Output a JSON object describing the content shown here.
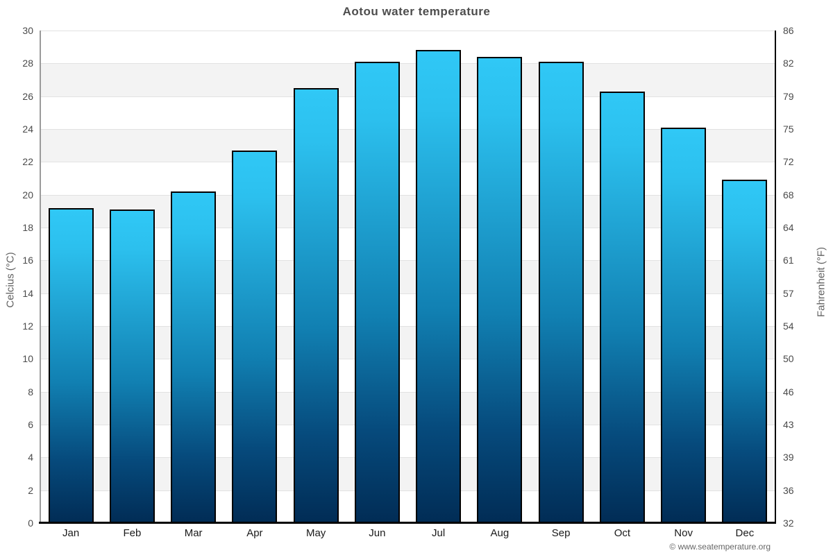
{
  "title": "Aotou water temperature",
  "footer": {
    "copyright": "© www.seatemperature.org"
  },
  "chart_data": {
    "type": "bar",
    "title": "Aotou water temperature",
    "categories": [
      "Jan",
      "Feb",
      "Mar",
      "Apr",
      "May",
      "Jun",
      "Jul",
      "Aug",
      "Sep",
      "Oct",
      "Nov",
      "Dec"
    ],
    "values": [
      19.2,
      19.1,
      20.2,
      22.7,
      26.5,
      28.1,
      28.8,
      28.4,
      28.1,
      26.3,
      24.1,
      20.9
    ],
    "ylabel_left": "Celcius (°C)",
    "ylabel_right": "Fahrenheit (°F)",
    "yticks_celsius": [
      30,
      28,
      26,
      24,
      22,
      20,
      18,
      16,
      14,
      12,
      10,
      8,
      6,
      4,
      2,
      0
    ],
    "yticks_fahrenheit": [
      86,
      82,
      79,
      75,
      72,
      68,
      64,
      61,
      57,
      54,
      50,
      46,
      43,
      39,
      36,
      32
    ],
    "ylim": [
      0,
      30
    ],
    "grid": "horizontal gridlines every 2°C with alternating white/gray bands",
    "legend": "none",
    "colors": {
      "bar_gradient_top": "#30c8f6",
      "bar_gradient_mid": "#1180b2",
      "bar_gradient_bottom": "#012c55",
      "bar_border": "#000000",
      "band_alt": "#f3f3f3",
      "gridline": "#e2e2e2",
      "axis_left": "#9a9a9a",
      "axis_right": "#000000",
      "axis_bottom": "#000000",
      "title_color": "#4d4d4d",
      "tick_color": "#4a4a4a",
      "month_color": "#1a1a1a",
      "footer_color": "#666666"
    }
  }
}
